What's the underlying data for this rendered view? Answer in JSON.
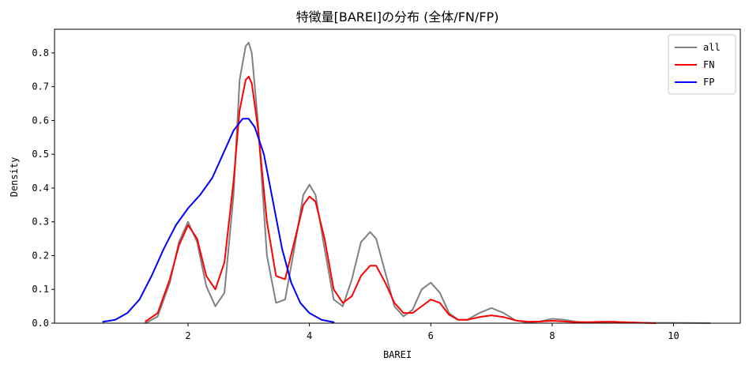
{
  "chart_data": {
    "type": "line",
    "title": "特徴量[BAREI]の分布 (全体/FN/FP)",
    "xlabel": "BAREI",
    "ylabel": "Density",
    "xlim": [
      -0.2,
      11.1
    ],
    "ylim": [
      0,
      0.87
    ],
    "xticks": [
      2,
      4,
      6,
      8,
      10
    ],
    "xtick_labels": [
      "2",
      "4",
      "6",
      "8",
      "10"
    ],
    "yticks": [
      0,
      0.1,
      0.2,
      0.3,
      0.4,
      0.5,
      0.6,
      0.7,
      0.8
    ],
    "ytick_labels": [
      "0.0",
      "0.1",
      "0.2",
      "0.3",
      "0.4",
      "0.5",
      "0.6",
      "0.7",
      "0.8"
    ],
    "grid": false,
    "legend_position": "top-right",
    "series": [
      {
        "name": "all",
        "color": "#808080",
        "x": [
          1.3,
          1.5,
          1.7,
          1.85,
          2.0,
          2.15,
          2.3,
          2.45,
          2.6,
          2.75,
          2.85,
          2.95,
          3.0,
          3.05,
          3.15,
          3.3,
          3.45,
          3.6,
          3.75,
          3.9,
          4.0,
          4.1,
          4.25,
          4.4,
          4.55,
          4.7,
          4.85,
          5.0,
          5.1,
          5.25,
          5.4,
          5.55,
          5.7,
          5.85,
          6.0,
          6.15,
          6.3,
          6.45,
          6.6,
          6.8,
          7.0,
          7.2,
          7.4,
          7.6,
          7.8,
          8.0,
          8.2,
          8.4,
          8.6,
          8.8,
          9.0,
          9.3,
          9.6,
          10.0,
          10.3,
          10.6
        ],
        "y": [
          0.0,
          0.02,
          0.12,
          0.24,
          0.3,
          0.24,
          0.11,
          0.05,
          0.09,
          0.38,
          0.72,
          0.82,
          0.83,
          0.8,
          0.6,
          0.2,
          0.06,
          0.07,
          0.22,
          0.38,
          0.41,
          0.38,
          0.22,
          0.07,
          0.05,
          0.13,
          0.24,
          0.27,
          0.25,
          0.15,
          0.05,
          0.02,
          0.04,
          0.1,
          0.12,
          0.09,
          0.03,
          0.01,
          0.01,
          0.03,
          0.045,
          0.03,
          0.008,
          0.002,
          0.005,
          0.013,
          0.01,
          0.004,
          0.002,
          0.003,
          0.004,
          0.002,
          0.001,
          0.001,
          0.0005,
          0.0
        ]
      },
      {
        "name": "FN",
        "color": "#ff0000",
        "x": [
          1.3,
          1.5,
          1.7,
          1.85,
          2.0,
          2.15,
          2.3,
          2.45,
          2.6,
          2.75,
          2.85,
          2.95,
          3.0,
          3.05,
          3.15,
          3.3,
          3.45,
          3.6,
          3.75,
          3.9,
          4.0,
          4.1,
          4.25,
          4.4,
          4.55,
          4.7,
          4.85,
          5.0,
          5.1,
          5.25,
          5.4,
          5.55,
          5.7,
          5.85,
          6.0,
          6.15,
          6.3,
          6.45,
          6.6,
          6.8,
          7.0,
          7.2,
          7.4,
          7.6,
          7.8,
          8.0,
          8.2,
          8.4,
          8.6,
          8.8,
          9.0,
          9.3,
          9.7
        ],
        "y": [
          0.005,
          0.03,
          0.13,
          0.23,
          0.29,
          0.25,
          0.14,
          0.1,
          0.18,
          0.42,
          0.63,
          0.72,
          0.73,
          0.71,
          0.58,
          0.3,
          0.14,
          0.13,
          0.24,
          0.35,
          0.375,
          0.36,
          0.25,
          0.1,
          0.06,
          0.08,
          0.14,
          0.17,
          0.17,
          0.12,
          0.06,
          0.03,
          0.03,
          0.05,
          0.07,
          0.06,
          0.025,
          0.01,
          0.01,
          0.018,
          0.023,
          0.018,
          0.008,
          0.004,
          0.005,
          0.007,
          0.005,
          0.003,
          0.003,
          0.004,
          0.004,
          0.002,
          0.0
        ]
      },
      {
        "name": "FP",
        "color": "#0000ff",
        "x": [
          0.6,
          0.8,
          1.0,
          1.2,
          1.4,
          1.6,
          1.8,
          2.0,
          2.2,
          2.4,
          2.6,
          2.75,
          2.9,
          3.0,
          3.1,
          3.25,
          3.4,
          3.55,
          3.7,
          3.85,
          4.0,
          4.2,
          4.4
        ],
        "y": [
          0.004,
          0.01,
          0.03,
          0.07,
          0.14,
          0.22,
          0.29,
          0.34,
          0.38,
          0.43,
          0.51,
          0.57,
          0.605,
          0.605,
          0.58,
          0.5,
          0.36,
          0.22,
          0.12,
          0.06,
          0.03,
          0.01,
          0.003
        ]
      }
    ]
  }
}
